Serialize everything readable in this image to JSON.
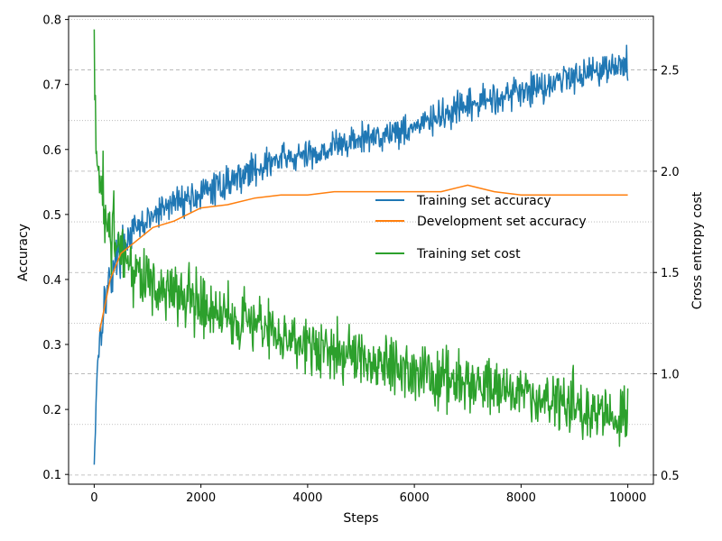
{
  "chart_data": {
    "type": "line",
    "title": "",
    "xlabel": "Steps",
    "ylabel_left": "Accuracy",
    "ylabel_right": "Cross entropy cost",
    "xlim": [
      -480,
      10480
    ],
    "ylim_left": [
      0.085,
      0.805
    ],
    "ylim_right": [
      0.455,
      2.765
    ],
    "x_ticks": [
      0,
      2000,
      4000,
      6000,
      8000,
      10000
    ],
    "y_ticks_left": [
      0.1,
      0.2,
      0.3,
      0.4,
      0.5,
      0.6,
      0.7,
      0.8
    ],
    "y_ticks_right": [
      0.5,
      1.0,
      1.5,
      2.0,
      2.5
    ],
    "y_tick_labels_left": [
      "0.1",
      "0.2",
      "0.3",
      "0.4",
      "0.5",
      "0.6",
      "0.7",
      "0.8"
    ],
    "y_tick_labels_right": [
      "0.5",
      "1.0",
      "1.5",
      "2.0",
      "2.5"
    ],
    "grid_right": {
      "major": [
        0.5,
        1.0,
        1.5,
        2.0,
        2.5
      ],
      "minor": [
        0.75,
        1.25,
        1.75,
        2.25,
        2.75
      ]
    },
    "legend_position": "center-right",
    "series": [
      {
        "name": "Training set accuracy",
        "axis": "left",
        "color": "#1f77b4",
        "x": [
          0,
          50,
          100,
          200,
          300,
          400,
          500,
          700,
          1000,
          1500,
          2000,
          2500,
          3000,
          3500,
          4000,
          4500,
          5000,
          5500,
          6000,
          6500,
          7000,
          7500,
          8000,
          8500,
          9000,
          9500,
          10000
        ],
        "y": [
          0.115,
          0.26,
          0.31,
          0.37,
          0.4,
          0.43,
          0.45,
          0.47,
          0.49,
          0.52,
          0.53,
          0.55,
          0.57,
          0.585,
          0.59,
          0.605,
          0.615,
          0.625,
          0.635,
          0.65,
          0.665,
          0.68,
          0.69,
          0.7,
          0.715,
          0.725,
          0.73
        ],
        "noise_amplitude": 0.015
      },
      {
        "name": "Development set accuracy",
        "axis": "left",
        "color": "#ff7f0e",
        "x": [
          100,
          200,
          300,
          500,
          800,
          1100,
          1500,
          2000,
          2500,
          3000,
          3500,
          4000,
          4500,
          5000,
          5500,
          6000,
          6500,
          7000,
          7500,
          8000,
          8500,
          9000,
          9500,
          10000
        ],
        "y": [
          0.32,
          0.36,
          0.4,
          0.44,
          0.46,
          0.48,
          0.49,
          0.51,
          0.515,
          0.525,
          0.53,
          0.53,
          0.535,
          0.535,
          0.535,
          0.535,
          0.535,
          0.545,
          0.535,
          0.53,
          0.53,
          0.53,
          0.53,
          0.53
        ]
      },
      {
        "name": "Training set cost",
        "axis": "right",
        "color": "#2ca02c",
        "x": [
          0,
          30,
          80,
          150,
          250,
          400,
          600,
          1000,
          1500,
          2000,
          2500,
          3000,
          3500,
          4000,
          4500,
          5000,
          5500,
          6000,
          6500,
          7000,
          7500,
          8000,
          8500,
          9000,
          9500,
          10000
        ],
        "y": [
          2.7,
          2.1,
          2.0,
          1.85,
          1.75,
          1.65,
          1.55,
          1.45,
          1.4,
          1.35,
          1.3,
          1.25,
          1.2,
          1.15,
          1.1,
          1.07,
          1.04,
          1.01,
          0.98,
          0.95,
          0.92,
          0.9,
          0.87,
          0.84,
          0.8,
          0.78
        ],
        "noise_amplitude": 0.09
      }
    ]
  }
}
